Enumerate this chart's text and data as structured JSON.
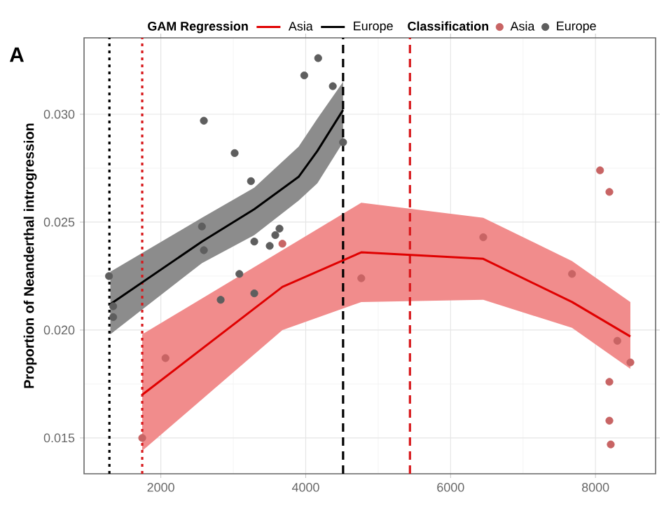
{
  "chart_data": {
    "type": "line",
    "ylabel": "Proportion of Neanderthal introgression",
    "legend_title": "GAM Regression",
    "annotations": [
      "A",
      "Classification"
    ],
    "xlim": [
      940,
      8830
    ],
    "ylim": [
      0.01334,
      0.03354
    ],
    "xticks": [
      2000,
      4000,
      6000,
      8000
    ],
    "yticks": [
      {
        "value": 0.015,
        "label": "0.015"
      },
      {
        "value": 0.02,
        "label": "0.020"
      },
      {
        "value": 0.025,
        "label": "0.025"
      },
      {
        "value": 0.03,
        "label": "0.030"
      }
    ],
    "grid": true,
    "legend": "top",
    "ref_lines": [
      {
        "axis": "x",
        "value": 1290,
        "color": "#000000",
        "line_style": "dotted"
      },
      {
        "axis": "x",
        "value": 1743,
        "color": "#d7191c",
        "line_style": "dotted"
      },
      {
        "axis": "x",
        "value": 4516,
        "color": "#000000",
        "line_style": "dashed"
      },
      {
        "axis": "x",
        "value": 5439,
        "color": "#d7191c",
        "line_style": "dashed"
      }
    ],
    "series": [
      {
        "name": "Asia",
        "color": "#e00000",
        "x": [
          1743,
          3678,
          4767,
          6451,
          7676,
          8482
        ],
        "values": [
          0.017,
          0.022,
          0.0236,
          0.0233,
          0.0213,
          0.0197
        ],
        "lower": [
          0.0144,
          0.02,
          0.0213,
          0.0214,
          0.0201,
          0.0182
        ],
        "upper": [
          0.0198,
          0.0237,
          0.0259,
          0.0252,
          0.0232,
          0.0213
        ]
      },
      {
        "name": "Europe",
        "color": "#000000",
        "x": [
          1303,
          2567,
          3290,
          3902,
          4161,
          4516
        ],
        "values": [
          0.0212,
          0.0241,
          0.0256,
          0.0271,
          0.0283,
          0.0302
        ],
        "lower": [
          0.0198,
          0.0231,
          0.0244,
          0.026,
          0.0268,
          0.0287
        ],
        "upper": [
          0.0227,
          0.0252,
          0.0266,
          0.0285,
          0.0298,
          0.0315
        ]
      },
      {
        "name": "Asia",
        "type": "scatter",
        "color": "#c86464",
        "x": [
          3678,
          2064,
          1743,
          4767,
          6451,
          7676,
          8063,
          8192,
          8302,
          8482,
          8192,
          8192,
          8211
        ],
        "values": [
          0.024,
          0.0187,
          0.015,
          0.0224,
          0.0243,
          0.0226,
          0.0274,
          0.0264,
          0.0195,
          0.0185,
          0.0176,
          0.0158,
          0.0147
        ]
      },
      {
        "name": "Europe",
        "type": "scatter",
        "color": "#5e5e5e",
        "x": [
          4172,
          3980,
          4374,
          2594,
          3019,
          4516,
          3244,
          2567,
          2594,
          3290,
          3503,
          3580,
          3638,
          3084,
          3290,
          2826,
          1284,
          1342,
          1342
        ],
        "values": [
          0.0326,
          0.0318,
          0.0313,
          0.0297,
          0.0282,
          0.0287,
          0.0269,
          0.0248,
          0.0237,
          0.0241,
          0.0239,
          0.0244,
          0.0247,
          0.0226,
          0.0217,
          0.0214,
          0.0225,
          0.0211,
          0.0206
        ]
      }
    ]
  }
}
